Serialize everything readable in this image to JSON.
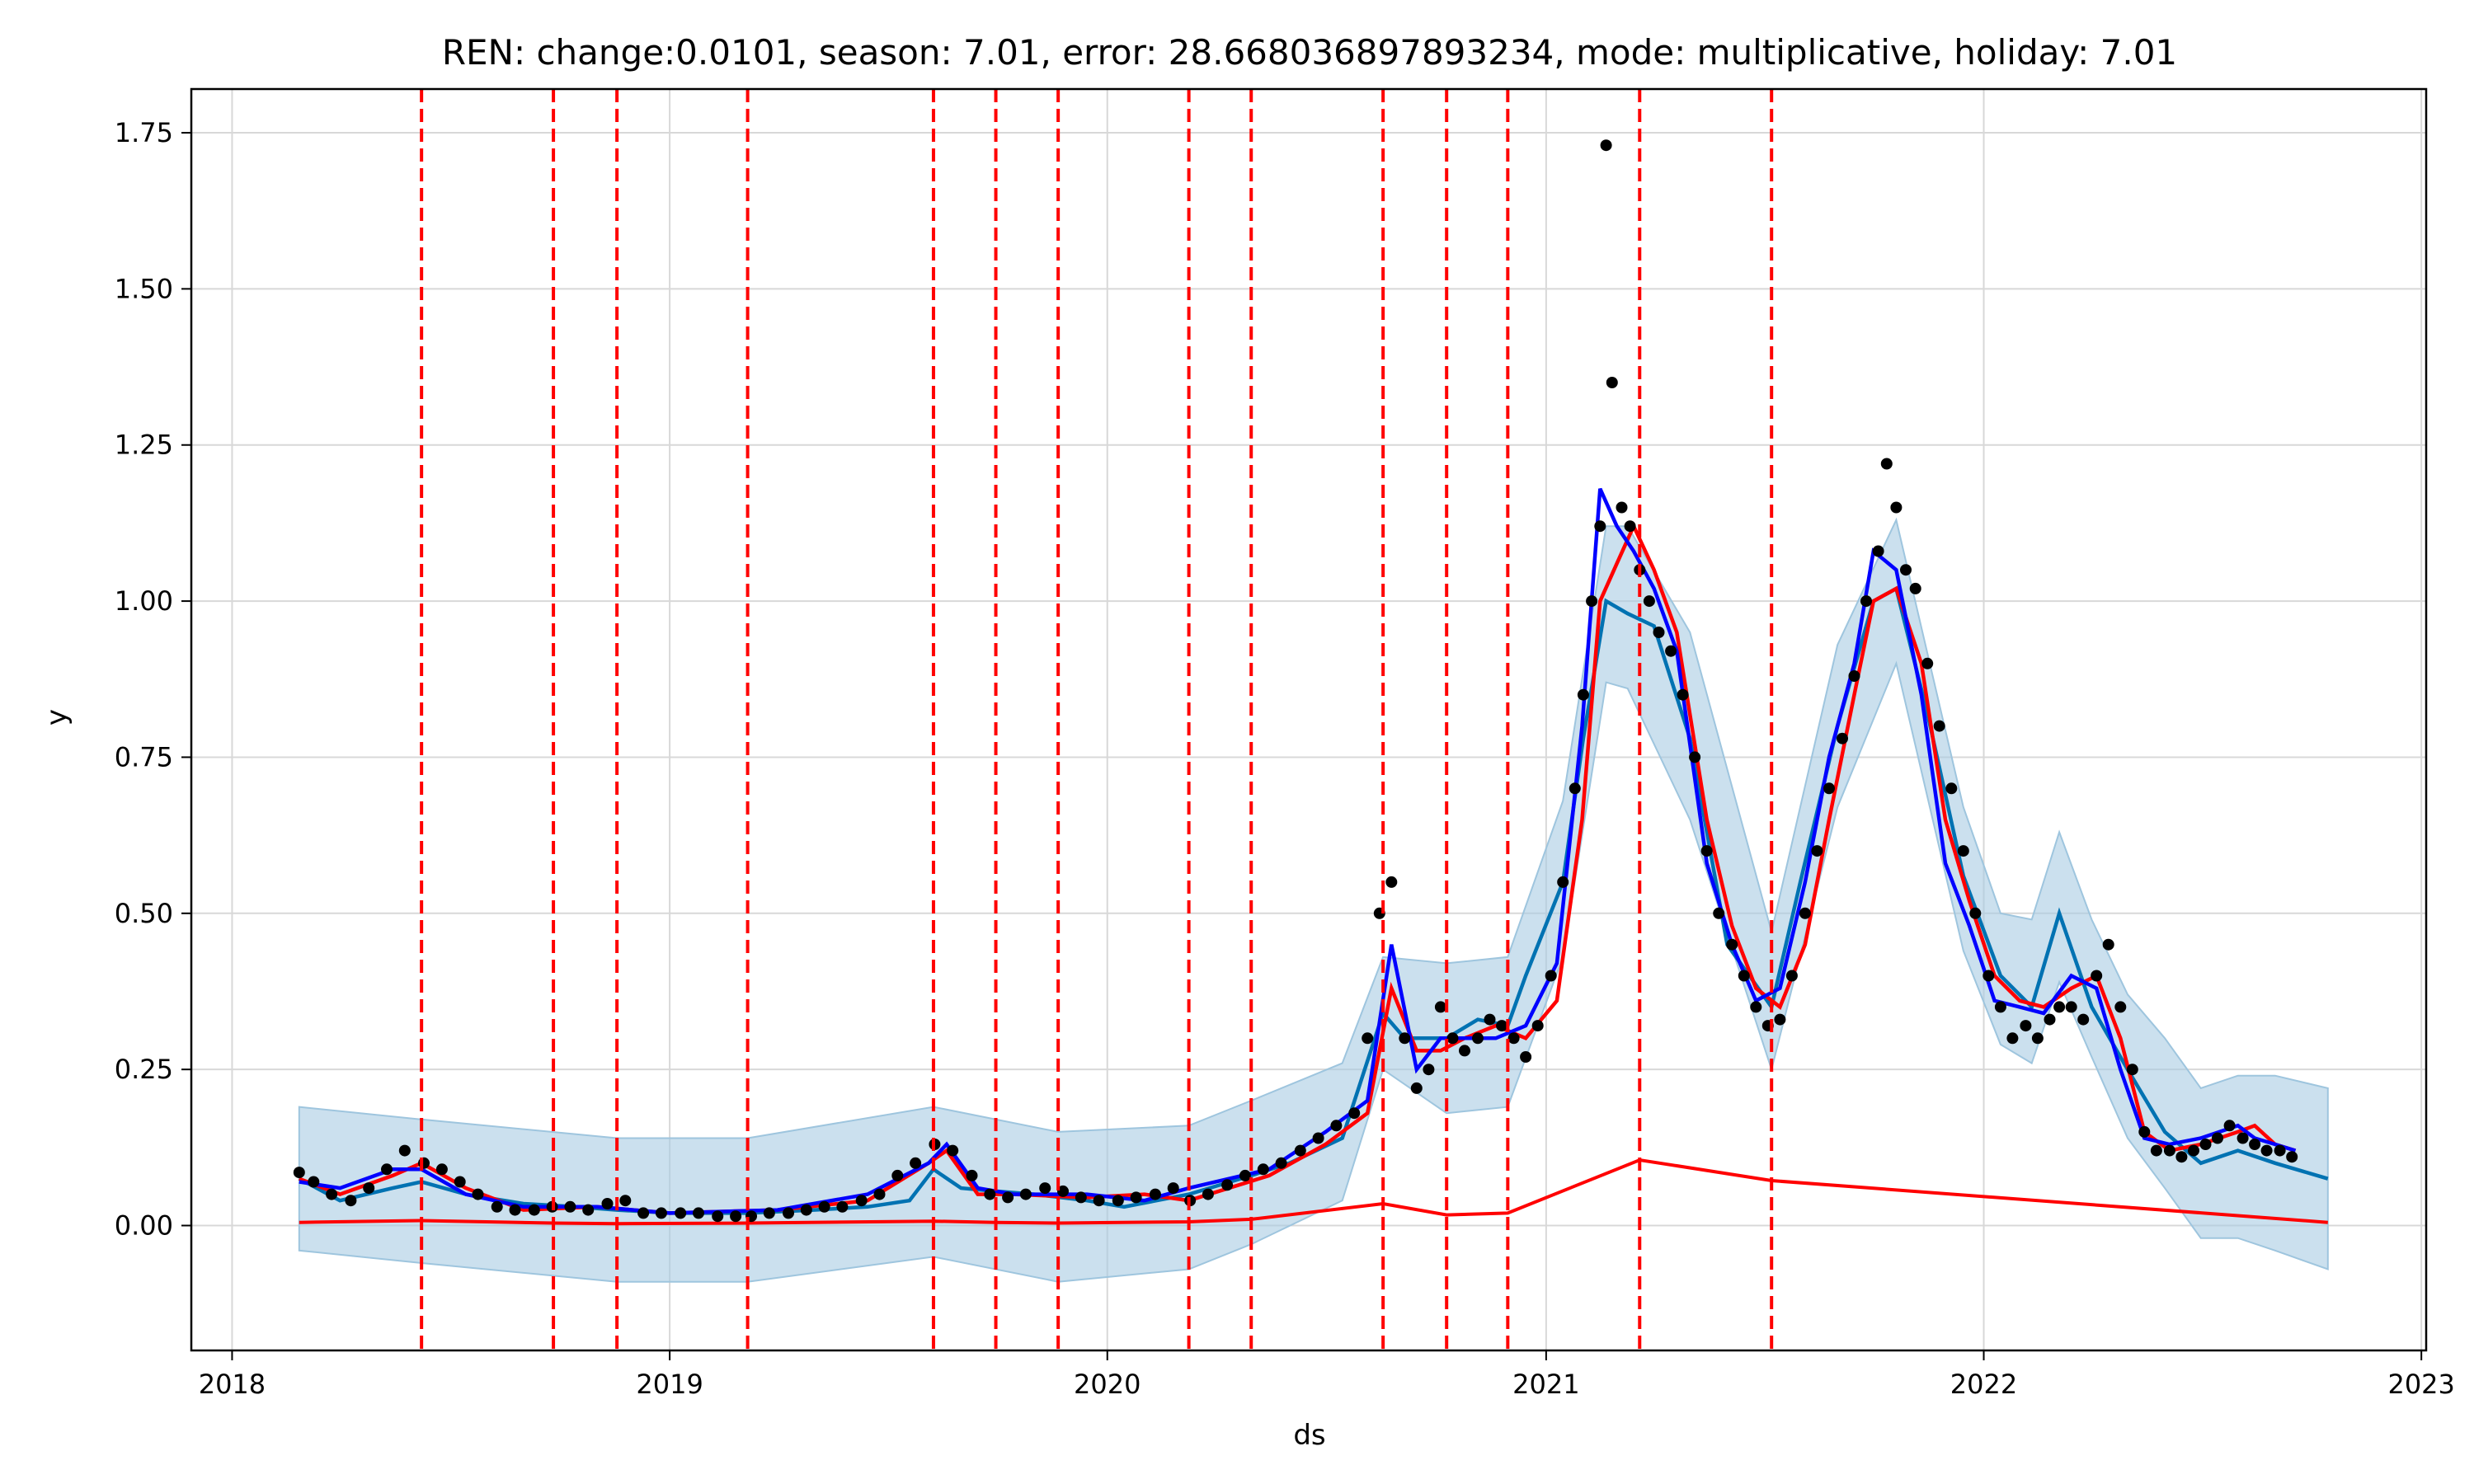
{
  "chart_data": {
    "type": "line",
    "title": "REN: change:0.0101, season: 7.01, error: 28.668036897893234, mode: multiplicative, holiday: 7.01",
    "xlabel": "ds",
    "ylabel": "y",
    "x_range": [
      "2017-11-28",
      "2023-01-05"
    ],
    "ylim": [
      -0.2,
      1.82
    ],
    "x_ticks": [
      {
        "date": "2018-01-01",
        "label": "2018"
      },
      {
        "date": "2019-01-01",
        "label": "2019"
      },
      {
        "date": "2020-01-01",
        "label": "2020"
      },
      {
        "date": "2021-01-01",
        "label": "2021"
      },
      {
        "date": "2022-01-01",
        "label": "2022"
      },
      {
        "date": "2023-01-01",
        "label": "2023"
      }
    ],
    "y_ticks": [
      {
        "value": 0.0,
        "label": "0.00"
      },
      {
        "value": 0.25,
        "label": "0.25"
      },
      {
        "value": 0.5,
        "label": "0.50"
      },
      {
        "value": 0.75,
        "label": "0.75"
      },
      {
        "value": 1.0,
        "label": "1.00"
      },
      {
        "value": 1.25,
        "label": "1.25"
      },
      {
        "value": 1.5,
        "label": "1.50"
      },
      {
        "value": 1.75,
        "label": "1.75"
      }
    ],
    "grid": true,
    "colors": {
      "observed": "#000000",
      "forecast": "#0072b2",
      "interval": "#a9cce3",
      "trend": "#ff0000",
      "changepoint": "#ff0000",
      "smoothed_red": "#ff0000",
      "smoothed_blue": "#0000ff"
    },
    "changepoints": [
      "2018-06-08",
      "2018-09-26",
      "2018-11-18",
      "2019-03-07",
      "2019-08-09",
      "2019-09-30",
      "2019-11-21",
      "2020-03-09",
      "2020-04-30",
      "2020-08-18",
      "2020-10-10",
      "2020-11-30",
      "2021-03-20",
      "2021-07-08"
    ],
    "trend": {
      "x": [
        "2018-02-26",
        "2018-06-08",
        "2018-09-26",
        "2018-11-18",
        "2019-03-07",
        "2019-08-09",
        "2019-09-30",
        "2019-11-21",
        "2020-03-09",
        "2020-04-30",
        "2020-08-18",
        "2020-10-10",
        "2020-11-30",
        "2021-03-20",
        "2021-07-08",
        "2022-10-15"
      ],
      "y": [
        0.005,
        0.008,
        0.004,
        0.003,
        0.004,
        0.007,
        0.005,
        0.004,
        0.006,
        0.01,
        0.035,
        0.017,
        0.02,
        0.105,
        0.072,
        0.005
      ]
    },
    "forecast": {
      "x": [
        "2018-02-26",
        "2018-04-01",
        "2018-05-15",
        "2018-06-08",
        "2018-07-15",
        "2018-09-01",
        "2018-10-15",
        "2018-11-18",
        "2019-01-01",
        "2019-03-07",
        "2019-05-01",
        "2019-06-15",
        "2019-07-20",
        "2019-08-09",
        "2019-09-01",
        "2019-09-30",
        "2019-11-01",
        "2019-12-15",
        "2020-01-15",
        "2020-03-09",
        "2020-04-30",
        "2020-06-01",
        "2020-07-15",
        "2020-08-18",
        "2020-09-05",
        "2020-10-10",
        "2020-11-05",
        "2020-11-30",
        "2020-12-15",
        "2021-01-15",
        "2021-02-01",
        "2021-02-20",
        "2021-03-10",
        "2021-04-01",
        "2021-05-01",
        "2021-06-01",
        "2021-07-08",
        "2021-08-01",
        "2021-09-01",
        "2021-10-01",
        "2021-10-20",
        "2021-11-15",
        "2021-12-15",
        "2022-01-15",
        "2022-02-10",
        "2022-03-05",
        "2022-04-01",
        "2022-05-01",
        "2022-06-01",
        "2022-07-01",
        "2022-08-01",
        "2022-09-01",
        "2022-10-15"
      ],
      "y": [
        0.075,
        0.04,
        0.06,
        0.07,
        0.05,
        0.035,
        0.03,
        0.025,
        0.02,
        0.02,
        0.025,
        0.03,
        0.04,
        0.09,
        0.06,
        0.055,
        0.05,
        0.04,
        0.03,
        0.05,
        0.08,
        0.1,
        0.14,
        0.34,
        0.3,
        0.3,
        0.33,
        0.32,
        0.4,
        0.55,
        0.78,
        1.0,
        0.98,
        0.96,
        0.78,
        0.45,
        0.35,
        0.55,
        0.8,
        1.0,
        1.02,
        0.82,
        0.56,
        0.4,
        0.35,
        0.5,
        0.35,
        0.25,
        0.15,
        0.1,
        0.12,
        0.1,
        0.075
      ]
    },
    "interval": {
      "x": [
        "2018-02-26",
        "2018-06-08",
        "2018-11-18",
        "2019-03-07",
        "2019-08-09",
        "2019-11-21",
        "2020-03-09",
        "2020-04-30",
        "2020-07-15",
        "2020-08-18",
        "2020-10-10",
        "2020-11-30",
        "2021-01-15",
        "2021-02-20",
        "2021-03-10",
        "2021-05-01",
        "2021-07-08",
        "2021-09-01",
        "2021-10-20",
        "2021-12-15",
        "2022-01-15",
        "2022-02-10",
        "2022-03-05",
        "2022-04-01",
        "2022-05-01",
        "2022-06-01",
        "2022-07-01",
        "2022-08-01",
        "2022-09-01",
        "2022-10-15"
      ],
      "upper": [
        0.19,
        0.17,
        0.14,
        0.14,
        0.19,
        0.15,
        0.16,
        0.2,
        0.26,
        0.43,
        0.42,
        0.43,
        0.68,
        1.12,
        1.12,
        0.95,
        0.47,
        0.93,
        1.13,
        0.67,
        0.5,
        0.49,
        0.63,
        0.49,
        0.37,
        0.3,
        0.22,
        0.24,
        0.24,
        0.22
      ],
      "lower": [
        -0.04,
        -0.06,
        -0.09,
        -0.09,
        -0.05,
        -0.09,
        -0.07,
        -0.03,
        0.04,
        0.25,
        0.18,
        0.19,
        0.43,
        0.87,
        0.86,
        0.65,
        0.25,
        0.67,
        0.9,
        0.44,
        0.29,
        0.26,
        0.39,
        0.27,
        0.14,
        0.06,
        -0.02,
        -0.02,
        -0.04,
        -0.07
      ]
    },
    "smoothed_red": {
      "x": [
        "2018-02-26",
        "2018-04-01",
        "2018-05-15",
        "2018-06-08",
        "2018-07-15",
        "2018-09-01",
        "2018-11-01",
        "2019-01-01",
        "2019-04-01",
        "2019-06-15",
        "2019-08-05",
        "2019-08-20",
        "2019-09-15",
        "2019-10-15",
        "2019-12-15",
        "2020-02-01",
        "2020-03-09",
        "2020-05-15",
        "2020-07-01",
        "2020-08-05",
        "2020-08-25",
        "2020-09-15",
        "2020-10-05",
        "2020-10-25",
        "2020-11-20",
        "2020-12-15",
        "2021-01-10",
        "2021-01-31",
        "2021-02-15",
        "2021-03-01",
        "2021-03-15",
        "2021-04-01",
        "2021-04-20",
        "2021-05-15",
        "2021-06-05",
        "2021-06-25",
        "2021-07-15",
        "2021-08-05",
        "2021-08-25",
        "2021-09-15",
        "2021-10-01",
        "2021-10-20",
        "2021-11-10",
        "2021-11-30",
        "2021-12-20",
        "2022-01-10",
        "2022-01-31",
        "2022-02-20",
        "2022-03-15",
        "2022-04-05",
        "2022-04-25",
        "2022-05-15",
        "2022-06-05",
        "2022-07-01",
        "2022-08-01",
        "2022-08-15",
        "2022-09-01",
        "2022-09-18"
      ],
      "y": [
        0.075,
        0.05,
        0.08,
        0.1,
        0.06,
        0.025,
        0.03,
        0.02,
        0.025,
        0.04,
        0.1,
        0.12,
        0.05,
        0.05,
        0.045,
        0.05,
        0.04,
        0.08,
        0.13,
        0.18,
        0.38,
        0.28,
        0.28,
        0.3,
        0.32,
        0.3,
        0.36,
        0.65,
        1.0,
        1.06,
        1.12,
        1.05,
        0.95,
        0.65,
        0.48,
        0.38,
        0.35,
        0.45,
        0.65,
        0.85,
        1.0,
        1.02,
        0.9,
        0.65,
        0.52,
        0.4,
        0.36,
        0.35,
        0.38,
        0.4,
        0.3,
        0.15,
        0.12,
        0.13,
        0.15,
        0.16,
        0.13,
        0.12
      ]
    },
    "smoothed_blue": {
      "x": [
        "2018-02-26",
        "2018-04-01",
        "2018-05-15",
        "2018-06-08",
        "2018-07-15",
        "2018-09-01",
        "2018-11-01",
        "2019-01-01",
        "2019-04-01",
        "2019-06-15",
        "2019-08-05",
        "2019-08-20",
        "2019-09-15",
        "2019-10-15",
        "2019-12-15",
        "2020-02-01",
        "2020-03-09",
        "2020-05-15",
        "2020-07-01",
        "2020-08-05",
        "2020-08-25",
        "2020-09-15",
        "2020-10-05",
        "2020-10-25",
        "2020-11-20",
        "2020-12-15",
        "2021-01-10",
        "2021-01-31",
        "2021-02-15",
        "2021-03-01",
        "2021-03-15",
        "2021-04-01",
        "2021-04-20",
        "2021-05-15",
        "2021-06-05",
        "2021-06-25",
        "2021-07-15",
        "2021-08-05",
        "2021-08-25",
        "2021-09-15",
        "2021-10-01",
        "2021-10-20",
        "2021-11-10",
        "2021-11-30",
        "2021-12-20",
        "2022-01-10",
        "2022-01-31",
        "2022-02-20",
        "2022-03-15",
        "2022-04-05",
        "2022-04-25",
        "2022-05-15",
        "2022-06-05",
        "2022-07-01",
        "2022-08-01",
        "2022-08-15",
        "2022-09-01",
        "2022-09-18"
      ],
      "y": [
        0.07,
        0.06,
        0.09,
        0.09,
        0.05,
        0.03,
        0.03,
        0.02,
        0.025,
        0.05,
        0.1,
        0.13,
        0.06,
        0.05,
        0.05,
        0.04,
        0.06,
        0.09,
        0.15,
        0.2,
        0.45,
        0.25,
        0.3,
        0.3,
        0.3,
        0.32,
        0.42,
        0.8,
        1.18,
        1.12,
        1.08,
        1.02,
        0.92,
        0.58,
        0.45,
        0.36,
        0.38,
        0.55,
        0.75,
        0.9,
        1.08,
        1.05,
        0.85,
        0.58,
        0.48,
        0.36,
        0.35,
        0.34,
        0.4,
        0.38,
        0.25,
        0.14,
        0.13,
        0.14,
        0.16,
        0.14,
        0.13,
        0.12
      ]
    },
    "observed": {
      "x": [
        "2018-02-26",
        "2018-03-10",
        "2018-03-25",
        "2018-04-10",
        "2018-04-25",
        "2018-05-10",
        "2018-05-25",
        "2018-06-10",
        "2018-06-25",
        "2018-07-10",
        "2018-07-25",
        "2018-08-10",
        "2018-08-25",
        "2018-09-10",
        "2018-09-25",
        "2018-10-10",
        "2018-10-25",
        "2018-11-10",
        "2018-11-25",
        "2018-12-10",
        "2018-12-25",
        "2019-01-10",
        "2019-01-25",
        "2019-02-10",
        "2019-02-25",
        "2019-03-10",
        "2019-03-25",
        "2019-04-10",
        "2019-04-25",
        "2019-05-10",
        "2019-05-25",
        "2019-06-10",
        "2019-06-25",
        "2019-07-10",
        "2019-07-25",
        "2019-08-10",
        "2019-08-25",
        "2019-09-10",
        "2019-09-25",
        "2019-10-10",
        "2019-10-25",
        "2019-11-10",
        "2019-11-25",
        "2019-12-10",
        "2019-12-25",
        "2020-01-10",
        "2020-01-25",
        "2020-02-10",
        "2020-02-25",
        "2020-03-10",
        "2020-03-25",
        "2020-04-10",
        "2020-04-25",
        "2020-05-10",
        "2020-05-25",
        "2020-06-10",
        "2020-06-25",
        "2020-07-10",
        "2020-07-25",
        "2020-08-05",
        "2020-08-15",
        "2020-08-25",
        "2020-09-05",
        "2020-09-15",
        "2020-09-25",
        "2020-10-05",
        "2020-10-15",
        "2020-10-25",
        "2020-11-05",
        "2020-11-15",
        "2020-11-25",
        "2020-12-05",
        "2020-12-15",
        "2020-12-25",
        "2021-01-05",
        "2021-01-15",
        "2021-01-25",
        "2021-02-01",
        "2021-02-08",
        "2021-02-15",
        "2021-02-20",
        "2021-02-25",
        "2021-03-05",
        "2021-03-12",
        "2021-03-20",
        "2021-03-28",
        "2021-04-05",
        "2021-04-15",
        "2021-04-25",
        "2021-05-05",
        "2021-05-15",
        "2021-05-25",
        "2021-06-05",
        "2021-06-15",
        "2021-06-25",
        "2021-07-05",
        "2021-07-15",
        "2021-07-25",
        "2021-08-05",
        "2021-08-15",
        "2021-08-25",
        "2021-09-05",
        "2021-09-15",
        "2021-09-25",
        "2021-10-05",
        "2021-10-12",
        "2021-10-20",
        "2021-10-28",
        "2021-11-05",
        "2021-11-15",
        "2021-11-25",
        "2021-12-05",
        "2021-12-15",
        "2021-12-25",
        "2022-01-05",
        "2022-01-15",
        "2022-01-25",
        "2022-02-05",
        "2022-02-15",
        "2022-02-25",
        "2022-03-05",
        "2022-03-15",
        "2022-03-25",
        "2022-04-05",
        "2022-04-15",
        "2022-04-25",
        "2022-05-05",
        "2022-05-15",
        "2022-05-25",
        "2022-06-05",
        "2022-06-15",
        "2022-06-25",
        "2022-07-05",
        "2022-07-15",
        "2022-07-25",
        "2022-08-05",
        "2022-08-15",
        "2022-08-25",
        "2022-09-05",
        "2022-09-15"
      ],
      "y": [
        0.085,
        0.07,
        0.05,
        0.04,
        0.06,
        0.09,
        0.12,
        0.1,
        0.09,
        0.07,
        0.05,
        0.03,
        0.025,
        0.025,
        0.03,
        0.03,
        0.025,
        0.035,
        0.04,
        0.02,
        0.02,
        0.02,
        0.02,
        0.015,
        0.015,
        0.015,
        0.02,
        0.02,
        0.025,
        0.03,
        0.03,
        0.04,
        0.05,
        0.08,
        0.1,
        0.13,
        0.12,
        0.08,
        0.05,
        0.045,
        0.05,
        0.06,
        0.055,
        0.045,
        0.04,
        0.04,
        0.045,
        0.05,
        0.06,
        0.04,
        0.05,
        0.065,
        0.08,
        0.09,
        0.1,
        0.12,
        0.14,
        0.16,
        0.18,
        0.3,
        0.5,
        0.55,
        0.3,
        0.22,
        0.25,
        0.35,
        0.3,
        0.28,
        0.3,
        0.33,
        0.32,
        0.3,
        0.27,
        0.32,
        0.4,
        0.55,
        0.7,
        0.85,
        1.0,
        1.12,
        1.73,
        1.35,
        1.15,
        1.12,
        1.05,
        1.0,
        0.95,
        0.92,
        0.85,
        0.75,
        0.6,
        0.5,
        0.45,
        0.4,
        0.35,
        0.32,
        0.33,
        0.4,
        0.5,
        0.6,
        0.7,
        0.78,
        0.88,
        1.0,
        1.08,
        1.22,
        1.15,
        1.05,
        1.02,
        0.9,
        0.8,
        0.7,
        0.6,
        0.5,
        0.4,
        0.35,
        0.3,
        0.32,
        0.3,
        0.33,
        0.35,
        0.35,
        0.33,
        0.4,
        0.45,
        0.35,
        0.25,
        0.15,
        0.12,
        0.12,
        0.11,
        0.12,
        0.13,
        0.14,
        0.16,
        0.14,
        0.13,
        0.12,
        0.12,
        0.11
      ]
    }
  }
}
